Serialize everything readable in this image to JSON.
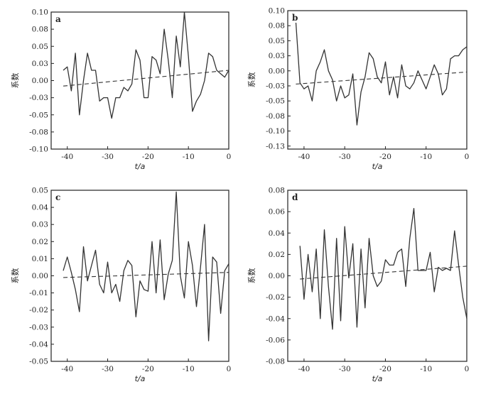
{
  "chart_data": [
    {
      "type": "line",
      "panel": "a",
      "xlabel": "t/a",
      "ylabel": "系数",
      "xlim": [
        -44,
        0
      ],
      "ylim": [
        -0.1,
        0.1
      ],
      "x_ticks": [
        "-40",
        "-30",
        "-20",
        "-10",
        "0"
      ],
      "x_tick_values": [
        -40,
        -30,
        -20,
        -10,
        0
      ],
      "y_ticks": [
        "0.10",
        "0.08",
        "0.05",
        "0.03",
        "0.00",
        "-0.03",
        "-0.05",
        "-0.08",
        "-0.10"
      ],
      "y_tick_values": [
        0.1,
        0.075,
        0.05,
        0.025,
        0.0,
        -0.025,
        -0.05,
        -0.075,
        -0.1
      ],
      "x": [
        -41,
        -40,
        -39,
        -38,
        -37,
        -36,
        -35,
        -34,
        -33,
        -32,
        -31,
        -30,
        -29,
        -28,
        -27,
        -26,
        -25,
        -24,
        -23,
        -22,
        -21,
        -20,
        -19,
        -18,
        -17,
        -16,
        -15,
        -14,
        -13,
        -12,
        -11,
        -10,
        -9,
        -8,
        -7,
        -6,
        -5,
        -4,
        -3,
        -2,
        -1,
        0
      ],
      "series": [
        {
          "values": [
            0.015,
            0.02,
            -0.015,
            0.04,
            -0.05,
            0.0,
            0.04,
            0.015,
            0.015,
            -0.03,
            -0.025,
            -0.025,
            -0.055,
            -0.025,
            -0.025,
            -0.01,
            -0.015,
            -0.005,
            0.045,
            0.03,
            -0.025,
            -0.025,
            0.035,
            0.03,
            0.01,
            0.075,
            0.03,
            -0.025,
            0.065,
            0.02,
            0.1,
            0.035,
            -0.045,
            -0.03,
            -0.02,
            0.0,
            0.04,
            0.035,
            0.015,
            0.01,
            0.005,
            0.015
          ]
        }
      ],
      "trend": {
        "start": [
          -41,
          -0.008
        ],
        "end": [
          0,
          0.015
        ]
      }
    },
    {
      "type": "line",
      "panel": "b",
      "xlabel": "t/a",
      "ylabel": "系数",
      "xlim": [
        -44,
        0
      ],
      "ylim": [
        -0.13,
        0.1
      ],
      "x_ticks": [
        "-40",
        "-30",
        "-20",
        "-10",
        "0"
      ],
      "x_tick_values": [
        -40,
        -30,
        -20,
        -10,
        0
      ],
      "y_ticks": [
        "0.10",
        "0.08",
        "0.05",
        "0.03",
        "0.00",
        "-0.03",
        "-0.05",
        "-0.08",
        "-0.10",
        "-0.13"
      ],
      "y_tick_values": [
        0.1,
        0.075,
        0.05,
        0.025,
        0.0,
        -0.025,
        -0.05,
        -0.075,
        -0.1,
        -0.125
      ],
      "x": [
        -42,
        -41,
        -40,
        -39,
        -38,
        -37,
        -36,
        -35,
        -34,
        -33,
        -32,
        -31,
        -30,
        -29,
        -28,
        -27,
        -26,
        -25,
        -24,
        -23,
        -22,
        -21,
        -20,
        -19,
        -18,
        -17,
        -16,
        -15,
        -14,
        -13,
        -12,
        -11,
        -10,
        -9,
        -8,
        -7,
        -6,
        -5,
        -4,
        -3,
        -2,
        -1,
        0
      ],
      "series": [
        {
          "values": [
            0.08,
            -0.02,
            -0.03,
            -0.025,
            -0.05,
            0.0,
            0.015,
            0.035,
            0.0,
            -0.015,
            -0.05,
            -0.025,
            -0.045,
            -0.04,
            -0.005,
            -0.09,
            -0.035,
            -0.01,
            0.03,
            0.02,
            -0.01,
            -0.02,
            0.015,
            -0.04,
            -0.01,
            -0.045,
            0.01,
            -0.025,
            -0.03,
            -0.02,
            0.0,
            -0.015,
            -0.03,
            -0.01,
            0.01,
            -0.005,
            -0.04,
            -0.03,
            0.02,
            0.025,
            0.025,
            0.035,
            0.04
          ]
        }
      ],
      "trend": {
        "start": [
          -42,
          -0.022
        ],
        "end": [
          0,
          -0.002
        ]
      }
    },
    {
      "type": "line",
      "panel": "c",
      "xlabel": "t/a",
      "ylabel": "系数",
      "xlim": [
        -44,
        0
      ],
      "ylim": [
        -0.05,
        0.05
      ],
      "x_ticks": [
        "-40",
        "-30",
        "-20",
        "-10",
        "0"
      ],
      "x_tick_values": [
        -40,
        -30,
        -20,
        -10,
        0
      ],
      "y_ticks": [
        "0.05",
        "0.04",
        "0.03",
        "0.02",
        "0.01",
        "0.00",
        "-0.01",
        "-0.02",
        "-0.03",
        "-0.04",
        "-0.05"
      ],
      "y_tick_values": [
        0.05,
        0.04,
        0.03,
        0.02,
        0.01,
        0.0,
        -0.01,
        -0.02,
        -0.03,
        -0.04,
        -0.05
      ],
      "x": [
        -41,
        -40,
        -39,
        -38,
        -37,
        -36,
        -35,
        -34,
        -33,
        -32,
        -31,
        -30,
        -29,
        -28,
        -27,
        -26,
        -25,
        -24,
        -23,
        -22,
        -21,
        -20,
        -19,
        -18,
        -17,
        -16,
        -15,
        -14,
        -13,
        -12,
        -11,
        -10,
        -9,
        -8,
        -7,
        -6,
        -5,
        -4,
        -3,
        -2,
        -1,
        0
      ],
      "series": [
        {
          "values": [
            0.003,
            0.011,
            0.002,
            -0.008,
            -0.021,
            0.017,
            -0.003,
            0.006,
            0.015,
            -0.005,
            -0.01,
            0.008,
            -0.01,
            -0.005,
            -0.015,
            0.003,
            0.009,
            0.006,
            -0.024,
            -0.003,
            -0.008,
            -0.009,
            0.02,
            -0.01,
            0.021,
            -0.014,
            0.001,
            0.009,
            0.049,
            0.0,
            -0.013,
            0.02,
            0.006,
            -0.018,
            0.005,
            0.03,
            -0.038,
            0.011,
            0.008,
            -0.022,
            0.003,
            0.007
          ]
        }
      ],
      "trend": {
        "start": [
          -41,
          -0.001
        ],
        "end": [
          0,
          0.002
        ]
      }
    },
    {
      "type": "line",
      "panel": "d",
      "xlabel": "t/a",
      "ylabel": "系数",
      "xlim": [
        -44,
        0
      ],
      "ylim": [
        -0.08,
        0.08
      ],
      "x_ticks": [
        "-40",
        "-30",
        "-20",
        "-10",
        "0"
      ],
      "x_tick_values": [
        -40,
        -30,
        -20,
        -10,
        0
      ],
      "y_ticks": [
        "0.08",
        "0.06",
        "0.04",
        "0.02",
        "0.00",
        "-0.02",
        "-0.04",
        "-0.06",
        "-0.08"
      ],
      "y_tick_values": [
        0.08,
        0.06,
        0.04,
        0.02,
        0.0,
        -0.02,
        -0.04,
        -0.06,
        -0.08
      ],
      "x": [
        -41,
        -40,
        -39,
        -38,
        -37,
        -36,
        -35,
        -34,
        -33,
        -32,
        -31,
        -30,
        -29,
        -28,
        -27,
        -26,
        -25,
        -24,
        -23,
        -22,
        -21,
        -20,
        -19,
        -18,
        -17,
        -16,
        -15,
        -14,
        -13,
        -12,
        -11,
        -10,
        -9,
        -8,
        -7,
        -6,
        -5,
        -4,
        -3,
        -2,
        -1,
        0
      ],
      "series": [
        {
          "values": [
            0.028,
            -0.022,
            0.02,
            -0.015,
            0.025,
            -0.04,
            0.043,
            -0.01,
            -0.05,
            0.035,
            -0.042,
            0.046,
            -0.002,
            0.03,
            -0.048,
            0.025,
            -0.03,
            0.035,
            0.0,
            -0.01,
            -0.005,
            0.015,
            0.01,
            0.01,
            0.022,
            0.025,
            -0.01,
            0.035,
            0.063,
            0.005,
            0.005,
            0.005,
            0.022,
            -0.015,
            0.008,
            0.005,
            0.007,
            0.005,
            0.042,
            0.01,
            -0.02,
            -0.04
          ]
        }
      ],
      "trend": {
        "start": [
          -41,
          -0.003
        ],
        "end": [
          0,
          0.009
        ]
      }
    }
  ]
}
